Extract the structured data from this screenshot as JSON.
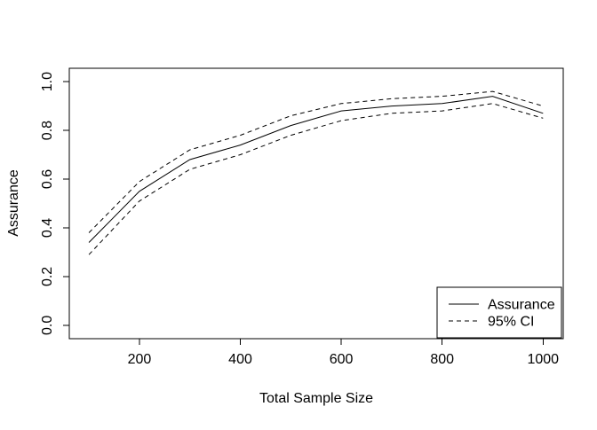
{
  "chart_data": {
    "type": "line",
    "title": "",
    "xlabel": "Total Sample Size",
    "ylabel": "Assurance",
    "x": [
      100,
      200,
      300,
      400,
      500,
      600,
      700,
      800,
      900,
      1000
    ],
    "series": [
      {
        "name": "Assurance",
        "style": "solid",
        "values": [
          0.34,
          0.55,
          0.68,
          0.74,
          0.82,
          0.88,
          0.9,
          0.91,
          0.94,
          0.87
        ]
      },
      {
        "name": "95% CI upper",
        "style": "dashed",
        "values": [
          0.38,
          0.59,
          0.72,
          0.78,
          0.86,
          0.91,
          0.93,
          0.94,
          0.96,
          0.9
        ]
      },
      {
        "name": "95% CI lower",
        "style": "dashed",
        "values": [
          0.29,
          0.51,
          0.64,
          0.7,
          0.78,
          0.84,
          0.87,
          0.88,
          0.91,
          0.85
        ]
      }
    ],
    "xlim": [
      61,
      1040
    ],
    "ylim": [
      -0.055,
      1.055
    ],
    "xticks": [
      200,
      400,
      600,
      800,
      1000
    ],
    "xtick_labels": [
      "200",
      "400",
      "600",
      "800",
      "1000"
    ],
    "yticks": [
      0.0,
      0.2,
      0.4,
      0.6,
      0.8,
      1.0
    ],
    "ytick_labels": [
      "0.0",
      "0.2",
      "0.4",
      "0.6",
      "0.8",
      "1.0"
    ],
    "grid": false,
    "line_color": "#000000",
    "background": "#ffffff",
    "legend": {
      "position": "bottomright",
      "entries": [
        {
          "label": "Assurance",
          "style": "solid"
        },
        {
          "label": "95% CI",
          "style": "dashed"
        }
      ]
    }
  }
}
